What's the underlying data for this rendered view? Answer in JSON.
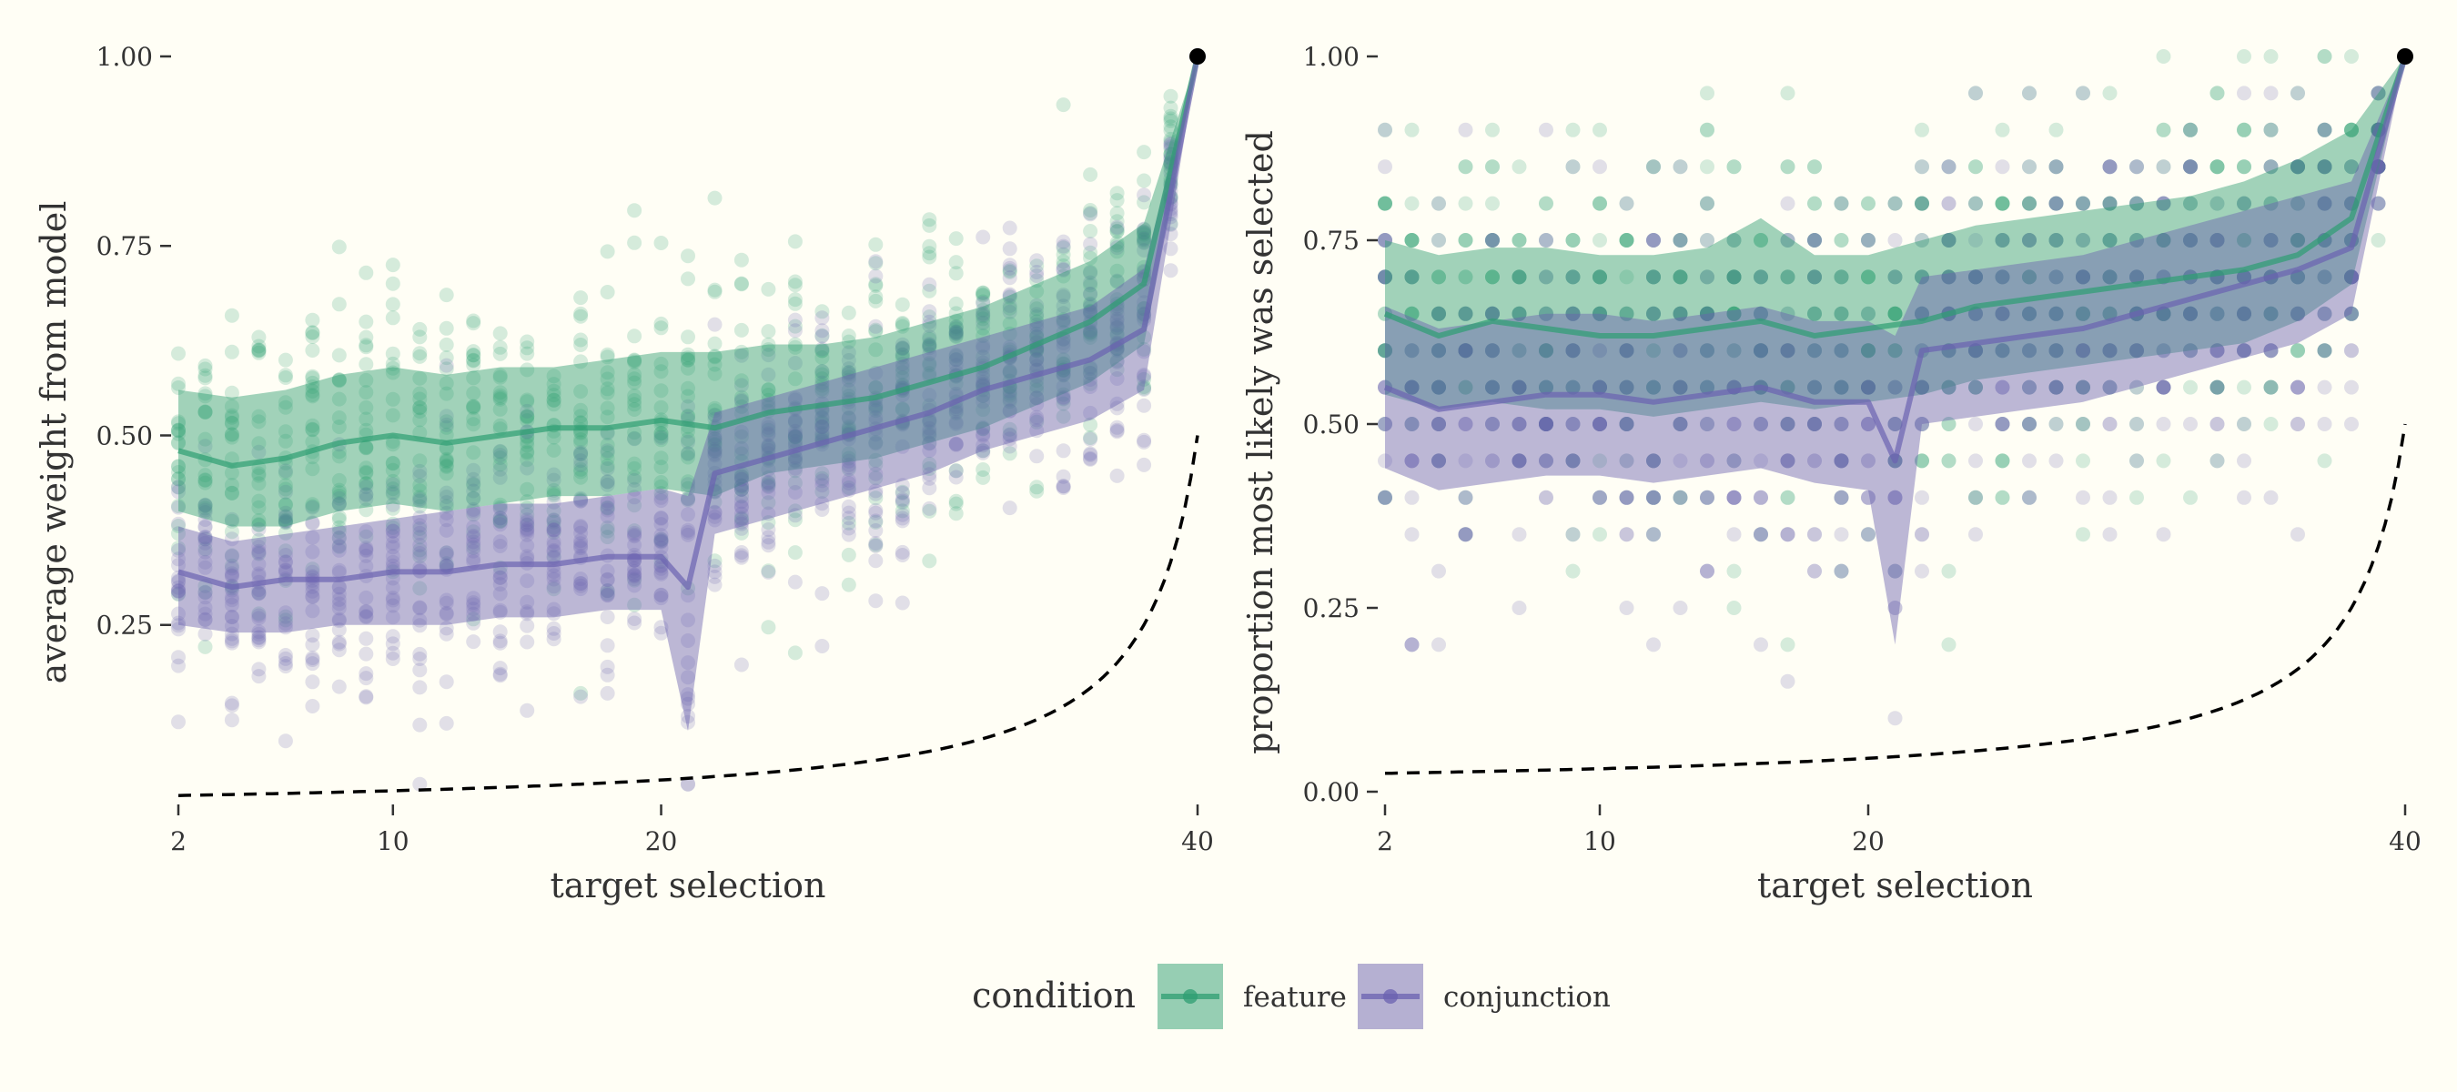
{
  "colors": {
    "background": "#fffef5",
    "feature": "#2e9e72",
    "conjunction": "#6b62b0",
    "reference": "#000000"
  },
  "legend": {
    "title": "condition",
    "items": [
      {
        "key": "feature",
        "label": "feature"
      },
      {
        "key": "conjunction",
        "label": "conjunction"
      }
    ]
  },
  "chart_data": [
    {
      "type": "line",
      "xlabel": "target selection",
      "ylabel": "average weight from model",
      "x_ticks": [
        2,
        10,
        20,
        40
      ],
      "y_ticks": [
        0.25,
        0.5,
        0.75,
        1.0
      ],
      "y_tick_labels": [
        "0.25",
        "0.50",
        "0.75",
        "1.00"
      ],
      "xlim": [
        2,
        40
      ],
      "ylim": [
        0.03,
        1.0
      ],
      "grid": false,
      "endpoint": [
        40,
        1.0
      ],
      "reference_curve": "1/(42-x)",
      "series": [
        {
          "name": "feature",
          "x": [
            2,
            4,
            6,
            8,
            10,
            12,
            14,
            16,
            18,
            20,
            22,
            24,
            26,
            28,
            30,
            32,
            34,
            36,
            38,
            40
          ],
          "mean": [
            0.48,
            0.46,
            0.47,
            0.49,
            0.5,
            0.49,
            0.5,
            0.51,
            0.51,
            0.52,
            0.51,
            0.53,
            0.54,
            0.55,
            0.57,
            0.59,
            0.62,
            0.65,
            0.7,
            1.0
          ],
          "lower": [
            0.4,
            0.38,
            0.38,
            0.4,
            0.41,
            0.4,
            0.41,
            0.42,
            0.42,
            0.43,
            0.42,
            0.45,
            0.46,
            0.47,
            0.49,
            0.51,
            0.54,
            0.57,
            0.62,
            1.0
          ],
          "upper": [
            0.56,
            0.55,
            0.56,
            0.58,
            0.59,
            0.58,
            0.59,
            0.59,
            0.6,
            0.61,
            0.61,
            0.62,
            0.62,
            0.63,
            0.65,
            0.67,
            0.7,
            0.73,
            0.78,
            1.0
          ]
        },
        {
          "name": "conjunction",
          "x": [
            2,
            4,
            6,
            8,
            10,
            12,
            14,
            16,
            18,
            20,
            21,
            22,
            24,
            26,
            28,
            30,
            32,
            34,
            36,
            38,
            40
          ],
          "mean": [
            0.32,
            0.3,
            0.31,
            0.31,
            0.32,
            0.32,
            0.33,
            0.33,
            0.34,
            0.34,
            0.3,
            0.45,
            0.47,
            0.49,
            0.51,
            0.53,
            0.56,
            0.58,
            0.6,
            0.64,
            1.0
          ],
          "lower": [
            0.25,
            0.24,
            0.24,
            0.25,
            0.25,
            0.25,
            0.26,
            0.26,
            0.27,
            0.27,
            0.11,
            0.37,
            0.39,
            0.41,
            0.43,
            0.45,
            0.48,
            0.5,
            0.52,
            0.56,
            1.0
          ],
          "upper": [
            0.38,
            0.36,
            0.37,
            0.38,
            0.39,
            0.4,
            0.41,
            0.41,
            0.42,
            0.43,
            0.42,
            0.53,
            0.55,
            0.57,
            0.59,
            0.61,
            0.63,
            0.65,
            0.67,
            0.72,
            1.0
          ]
        }
      ]
    },
    {
      "type": "line",
      "xlabel": "target selection",
      "ylabel": "proportion most likely was selected",
      "x_ticks": [
        2,
        10,
        20,
        40
      ],
      "y_ticks": [
        0.0,
        0.25,
        0.5,
        0.75,
        1.0
      ],
      "y_tick_labels": [
        "0.00",
        "0.25",
        "0.50",
        "0.75",
        "1.00"
      ],
      "xlim": [
        2,
        40
      ],
      "ylim": [
        0.0,
        1.0
      ],
      "grid": false,
      "endpoint": [
        40,
        1.0
      ],
      "reference_curve": "1/(42-x)",
      "series": [
        {
          "name": "feature",
          "x": [
            2,
            4,
            6,
            8,
            10,
            12,
            14,
            16,
            18,
            20,
            22,
            24,
            26,
            28,
            30,
            32,
            34,
            36,
            38,
            40
          ],
          "mean": [
            0.65,
            0.62,
            0.64,
            0.63,
            0.62,
            0.62,
            0.63,
            0.64,
            0.62,
            0.63,
            0.64,
            0.66,
            0.67,
            0.68,
            0.69,
            0.7,
            0.71,
            0.73,
            0.78,
            1.0
          ],
          "lower": [
            0.54,
            0.52,
            0.53,
            0.52,
            0.52,
            0.51,
            0.52,
            0.53,
            0.52,
            0.53,
            0.54,
            0.56,
            0.57,
            0.58,
            0.59,
            0.6,
            0.61,
            0.64,
            0.69,
            1.0
          ],
          "upper": [
            0.75,
            0.73,
            0.74,
            0.74,
            0.73,
            0.73,
            0.74,
            0.78,
            0.73,
            0.73,
            0.75,
            0.77,
            0.78,
            0.79,
            0.8,
            0.81,
            0.83,
            0.86,
            0.9,
            1.0
          ]
        },
        {
          "name": "conjunction",
          "x": [
            2,
            4,
            6,
            8,
            10,
            12,
            14,
            16,
            18,
            20,
            21,
            22,
            24,
            26,
            28,
            30,
            32,
            34,
            36,
            38,
            40
          ],
          "mean": [
            0.55,
            0.52,
            0.53,
            0.54,
            0.54,
            0.53,
            0.54,
            0.55,
            0.53,
            0.53,
            0.45,
            0.6,
            0.61,
            0.62,
            0.63,
            0.65,
            0.67,
            0.69,
            0.71,
            0.74,
            1.0
          ],
          "lower": [
            0.44,
            0.41,
            0.42,
            0.43,
            0.43,
            0.42,
            0.43,
            0.44,
            0.42,
            0.41,
            0.2,
            0.5,
            0.51,
            0.52,
            0.53,
            0.55,
            0.57,
            0.59,
            0.61,
            0.65,
            1.0
          ],
          "upper": [
            0.66,
            0.63,
            0.64,
            0.65,
            0.65,
            0.64,
            0.65,
            0.66,
            0.64,
            0.64,
            0.62,
            0.7,
            0.71,
            0.72,
            0.73,
            0.75,
            0.77,
            0.79,
            0.81,
            0.83,
            1.0
          ]
        }
      ]
    }
  ]
}
